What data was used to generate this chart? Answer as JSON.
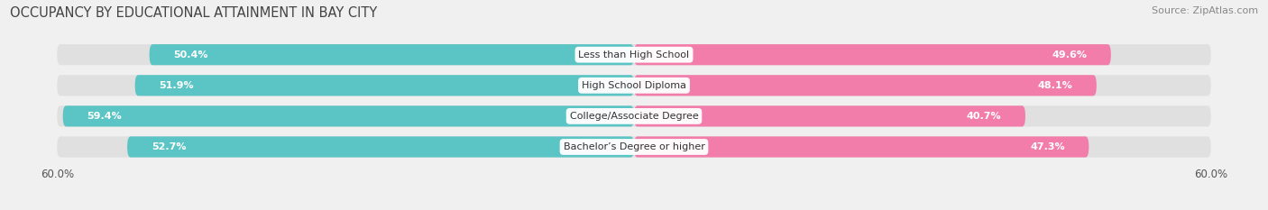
{
  "title": "OCCUPANCY BY EDUCATIONAL ATTAINMENT IN BAY CITY",
  "source": "Source: ZipAtlas.com",
  "categories": [
    "Less than High School",
    "High School Diploma",
    "College/Associate Degree",
    "Bachelor’s Degree or higher"
  ],
  "owner_values": [
    50.4,
    51.9,
    59.4,
    52.7
  ],
  "renter_values": [
    49.6,
    48.1,
    40.7,
    47.3
  ],
  "owner_color": "#5BC4C4",
  "renter_color": "#F27DAA",
  "xlim": 60.0,
  "bar_height": 0.68,
  "background_color": "#f0f0f0",
  "bar_background": "#e0e0e0",
  "title_fontsize": 10.5,
  "source_fontsize": 8,
  "label_fontsize": 8,
  "tick_fontsize": 8.5,
  "legend_fontsize": 8.5,
  "value_fontsize": 8
}
